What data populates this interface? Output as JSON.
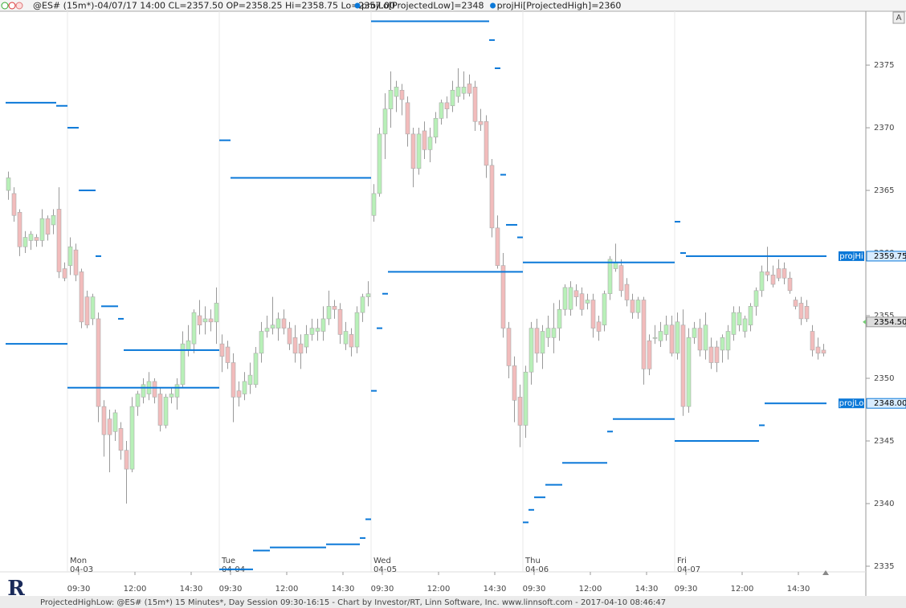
{
  "chart_data": {
    "type": "candlestick",
    "header": "@ES# (15m*)-04/07/17 14:00 CL=2357.50 OP=2358.25 Hi=2358.75 Lo=2357.00",
    "footer": "ProjectedHighLow: @ES# (15m*) 15 Minutes*, Day Session 09:30-16:15 - Chart by Investor/RT, Linn Software, Inc. www.linnsoft.com - 2017-04-10 08:46:47",
    "logo": "R",
    "scale_button": "A",
    "up_color": "#b8f0b8",
    "down_color": "#f2bcbc",
    "ylim": [
      2334.55,
      2379.3
    ],
    "yticks": [
      2335,
      2340,
      2345,
      2350,
      2355,
      2360,
      2365,
      2370,
      2375
    ],
    "day_labels": [
      {
        "value": 11,
        "label": "Mon",
        "date": "04-03"
      },
      {
        "value": 38,
        "label": "Tue",
        "date": "04-04"
      },
      {
        "value": 65,
        "label": "Wed",
        "date": "04-05"
      },
      {
        "value": 92,
        "label": "Thu",
        "date": "04-06"
      },
      {
        "value": 119,
        "label": "Fri",
        "date": "04-07"
      }
    ],
    "xticks": [
      {
        "value": 13,
        "label": "09:30"
      },
      {
        "value": 23,
        "label": "12:00"
      },
      {
        "value": 33,
        "label": "14:30"
      },
      {
        "value": 40,
        "label": "09:30"
      },
      {
        "value": 50,
        "label": "12:00"
      },
      {
        "value": 60,
        "label": "14:30"
      },
      {
        "value": 67,
        "label": "09:30"
      },
      {
        "value": 77,
        "label": "12:00"
      },
      {
        "value": 87,
        "label": "14:30"
      },
      {
        "value": 94,
        "label": "09:30"
      },
      {
        "value": 104,
        "label": "12:00"
      },
      {
        "value": 114,
        "label": "14:30"
      },
      {
        "value": 121,
        "label": "09:30"
      },
      {
        "value": 131,
        "label": "12:00"
      },
      {
        "value": 141,
        "label": "14:30"
      }
    ],
    "price_marker": {
      "value": 2354.5,
      "label": "2354.50"
    },
    "candles": [
      [
        2365,
        2366.5,
        2364.25,
        2366
      ],
      [
        2364.75,
        2365.25,
        2362.5,
        2363
      ],
      [
        2363.25,
        2363.5,
        2359.75,
        2360.5
      ],
      [
        2360.5,
        2361.75,
        2360,
        2361.25
      ],
      [
        2361,
        2361.75,
        2360.25,
        2361.5
      ],
      [
        2361.25,
        2361.5,
        2360.5,
        2361
      ],
      [
        2361,
        2363.5,
        2360.5,
        2362.75
      ],
      [
        2362.75,
        2363,
        2361,
        2361.5
      ],
      [
        2362.25,
        2363.5,
        2361.5,
        2363
      ],
      [
        2363.5,
        2365.25,
        2358,
        2358.5
      ],
      [
        2358.75,
        2359.25,
        2357.75,
        2358
      ],
      [
        2359,
        2361.25,
        2358.25,
        2360.5
      ],
      [
        2360.25,
        2360.75,
        2357.75,
        2358.25
      ],
      [
        2358.5,
        2358.75,
        2354,
        2354.5
      ],
      [
        2356.5,
        2357,
        2354,
        2354.25
      ],
      [
        2354.75,
        2356.75,
        2354.25,
        2356.5
      ],
      [
        2354.75,
        2355.25,
        2346.5,
        2347.75
      ],
      [
        2347.75,
        2348.25,
        2343.75,
        2345.5
      ],
      [
        2346.75,
        2347.5,
        2342.5,
        2345.5
      ],
      [
        2345.75,
        2347.5,
        2345,
        2347.25
      ],
      [
        2346,
        2346.5,
        2343.5,
        2344.25
      ],
      [
        2344.25,
        2345,
        2340,
        2342.75
      ],
      [
        2342.75,
        2348.5,
        2342.5,
        2347.75
      ],
      [
        2347.75,
        2349,
        2347,
        2348.75
      ],
      [
        2348.5,
        2350,
        2348,
        2349.5
      ],
      [
        2348.75,
        2350.5,
        2348.25,
        2349.75
      ],
      [
        2349.75,
        2350,
        2348,
        2348.5
      ],
      [
        2348.75,
        2349.25,
        2345.75,
        2346.25
      ],
      [
        2346.25,
        2348.75,
        2346,
        2348.5
      ],
      [
        2348.5,
        2349.25,
        2348,
        2348.75
      ],
      [
        2348.5,
        2350,
        2347.5,
        2349.5
      ],
      [
        2349.5,
        2353.75,
        2349.25,
        2352.75
      ],
      [
        2352.25,
        2354.25,
        2351.75,
        2353
      ],
      [
        2352.75,
        2355.5,
        2352,
        2355.25
      ],
      [
        2355,
        2356.25,
        2353.5,
        2354.25
      ],
      [
        2354.5,
        2355.75,
        2353.5,
        2354.75
      ],
      [
        2354.75,
        2355.5,
        2353.75,
        2354.5
      ],
      [
        2354.5,
        2357.25,
        2352.75,
        2356
      ],
      [
        2352.75,
        2353.5,
        2350.5,
        2351.75
      ],
      [
        2352.5,
        2353,
        2350.75,
        2351.25
      ],
      [
        2351.25,
        2352,
        2346.5,
        2348.5
      ],
      [
        2349,
        2349.75,
        2347.75,
        2348.5
      ],
      [
        2348.75,
        2350.5,
        2348.25,
        2349.75
      ],
      [
        2349.5,
        2351.25,
        2348.75,
        2350.25
      ],
      [
        2349.5,
        2352.5,
        2349.25,
        2352
      ],
      [
        2352,
        2354.5,
        2351.25,
        2353.75
      ],
      [
        2353.75,
        2355,
        2353.25,
        2354
      ],
      [
        2354,
        2356.5,
        2353.5,
        2354.25
      ],
      [
        2354,
        2355.25,
        2353,
        2354.75
      ],
      [
        2354.75,
        2355.5,
        2353.5,
        2354
      ],
      [
        2354,
        2354.5,
        2352.25,
        2352.75
      ],
      [
        2353.25,
        2354.25,
        2351.25,
        2352
      ],
      [
        2352.75,
        2353.5,
        2350.75,
        2352
      ],
      [
        2352.5,
        2354.25,
        2352,
        2353.5
      ],
      [
        2353.5,
        2354.75,
        2353,
        2354
      ],
      [
        2353.75,
        2354.75,
        2353,
        2354
      ],
      [
        2353.75,
        2355.75,
        2353,
        2354.75
      ],
      [
        2354.75,
        2357,
        2354.25,
        2355.75
      ],
      [
        2355.75,
        2356.25,
        2354.75,
        2355.5
      ],
      [
        2355.5,
        2356,
        2352.75,
        2353.5
      ],
      [
        2352.75,
        2354.5,
        2352.25,
        2353.75
      ],
      [
        2353.5,
        2354,
        2351.75,
        2352.5
      ],
      [
        2352.5,
        2355.75,
        2352,
        2355.25
      ],
      [
        2355.25,
        2356.75,
        2354.5,
        2356.5
      ],
      [
        2356.5,
        2357.75,
        2355.75,
        2356.75
      ],
      [
        2363,
        2365.5,
        2362.5,
        2364.75
      ],
      [
        2364.75,
        2370,
        2364.5,
        2369.5
      ],
      [
        2369.5,
        2372.75,
        2367.5,
        2371.5
      ],
      [
        2371.5,
        2374.5,
        2370,
        2373
      ],
      [
        2372.5,
        2373.75,
        2371.25,
        2373.25
      ],
      [
        2373,
        2373.5,
        2371,
        2372.25
      ],
      [
        2372,
        2372.5,
        2368.5,
        2369.5
      ],
      [
        2369.5,
        2370,
        2365.25,
        2366.75
      ],
      [
        2366.75,
        2370,
        2366.25,
        2369.5
      ],
      [
        2369.75,
        2370.5,
        2367.5,
        2368.25
      ],
      [
        2368.25,
        2370,
        2367.25,
        2369.25
      ],
      [
        2369.25,
        2371.25,
        2368.75,
        2370.75
      ],
      [
        2370.75,
        2372.25,
        2370.25,
        2372
      ],
      [
        2372,
        2372.5,
        2370.75,
        2371.5
      ],
      [
        2371.75,
        2373.75,
        2371.25,
        2373
      ],
      [
        2372.5,
        2374.75,
        2372,
        2373.25
      ],
      [
        2372.75,
        2374.5,
        2372.25,
        2373.25
      ],
      [
        2373.5,
        2374.25,
        2372.5,
        2372.75
      ],
      [
        2373.25,
        2373.75,
        2369.75,
        2370.5
      ],
      [
        2370.5,
        2371.5,
        2369.75,
        2370.25
      ],
      [
        2370.5,
        2371,
        2366,
        2367
      ],
      [
        2367,
        2367.5,
        2361.25,
        2362
      ],
      [
        2362,
        2363,
        2358.75,
        2359
      ],
      [
        2359,
        2360,
        2353.25,
        2354
      ],
      [
        2354,
        2354.5,
        2350,
        2351
      ],
      [
        2351,
        2351.75,
        2346.5,
        2348.25
      ],
      [
        2348.5,
        2349.5,
        2344.5,
        2346.25
      ],
      [
        2346.25,
        2351,
        2345.25,
        2350.5
      ],
      [
        2350.5,
        2354.5,
        2349.5,
        2354
      ],
      [
        2354,
        2354.75,
        2351.25,
        2352
      ],
      [
        2352,
        2354.25,
        2350.75,
        2353.75
      ],
      [
        2353.25,
        2355,
        2352.5,
        2354
      ],
      [
        2353.25,
        2356,
        2352,
        2354
      ],
      [
        2354,
        2356.25,
        2353,
        2355.5
      ],
      [
        2355.5,
        2357.5,
        2355,
        2357.25
      ],
      [
        2355.5,
        2357.75,
        2355,
        2357.25
      ],
      [
        2357,
        2357.5,
        2355.75,
        2356.5
      ],
      [
        2356.75,
        2357.25,
        2355,
        2355.5
      ],
      [
        2356,
        2356.75,
        2355.5,
        2356.25
      ],
      [
        2356.25,
        2356.75,
        2353.25,
        2354
      ],
      [
        2354.5,
        2355,
        2353,
        2353.75
      ],
      [
        2354.25,
        2357,
        2353.75,
        2356.75
      ],
      [
        2356.75,
        2359.75,
        2356.25,
        2359.5
      ],
      [
        2358.75,
        2360.75,
        2358.5,
        2359.25
      ],
      [
        2359,
        2359.5,
        2356.5,
        2357
      ],
      [
        2357.5,
        2358,
        2355.75,
        2356.25
      ],
      [
        2356.25,
        2356.75,
        2354.75,
        2355.25
      ],
      [
        2355.25,
        2356.5,
        2354.75,
        2356.25
      ],
      [
        2356.25,
        2356.5,
        2349.5,
        2350.75
      ],
      [
        2353,
        2353.5,
        2350.25,
        2350.75
      ],
      [
        2353.25,
        2354.25,
        2352.75,
        2353.25
      ],
      [
        2353,
        2354.5,
        2352.5,
        2353.75
      ],
      [
        2353.5,
        2355,
        2353,
        2354.25
      ],
      [
        2354.25,
        2355,
        2351.75,
        2352
      ],
      [
        2352,
        2355.25,
        2351.5,
        2354.5
      ],
      [
        2354.25,
        2355.5,
        2347,
        2347.75
      ],
      [
        2347.75,
        2354,
        2347.25,
        2353.25
      ],
      [
        2353.25,
        2354.5,
        2352.75,
        2354
      ],
      [
        2354,
        2354.75,
        2351.75,
        2352.25
      ],
      [
        2352.25,
        2355.25,
        2351.5,
        2354.25
      ],
      [
        2352.5,
        2353.25,
        2350.75,
        2351.25
      ],
      [
        2352.5,
        2353,
        2350.5,
        2351.25
      ],
      [
        2352.25,
        2353.5,
        2351.25,
        2353.25
      ],
      [
        2352.25,
        2354.25,
        2351.5,
        2353.75
      ],
      [
        2353.5,
        2355.75,
        2353,
        2355.25
      ],
      [
        2354.25,
        2355.75,
        2353.75,
        2355.25
      ],
      [
        2353.75,
        2355,
        2353.25,
        2354.75
      ],
      [
        2354.25,
        2356,
        2353.75,
        2355.75
      ],
      [
        2355.75,
        2357.25,
        2355,
        2357
      ],
      [
        2357,
        2359,
        2356.5,
        2358.5
      ],
      [
        2358.5,
        2360.5,
        2357.75,
        2358.25
      ],
      [
        2358.25,
        2359,
        2357.25,
        2357.5
      ],
      [
        2358.75,
        2359.5,
        2357.75,
        2358
      ],
      [
        2358.75,
        2359.25,
        2357.5,
        2358
      ],
      [
        2358,
        2358.5,
        2356.75,
        2357
      ],
      [
        2356.25,
        2356.5,
        2355.5,
        2355.75
      ],
      [
        2356,
        2356.5,
        2354.25,
        2354.75
      ],
      [
        2355.75,
        2356.25,
        2354.5,
        2354.75
      ],
      [
        2353.75,
        2354.25,
        2351.75,
        2352.25
      ],
      [
        2352.5,
        2353.25,
        2351.5,
        2352
      ],
      [
        2352.25,
        2352.75,
        2351.75,
        2352
      ]
    ],
    "series": [
      {
        "name": "projLo",
        "legend": "projLo[ProjectedLow]=2348",
        "color": "#0a78d8",
        "last_label": "2348.00",
        "values": [
          2352.75,
          2352.75,
          2352.75,
          2352.75,
          2352.75,
          2352.75,
          2352.75,
          2352.75,
          2352.75,
          2352.75,
          2352.75,
          2349.25,
          2349.25,
          2349.25,
          2349.25,
          2349.25,
          2349.25,
          2349.25,
          2349.25,
          2349.25,
          2349.25,
          2349.25,
          2349.25,
          2349.25,
          2349.25,
          2349.25,
          2349.25,
          2349.25,
          2349.25,
          2349.25,
          2349.25,
          2349.25,
          2349.25,
          2349.25,
          2349.25,
          2349.25,
          2349.25,
          2349.25,
          2334.75,
          2334.75,
          2334.75,
          2334.75,
          2334.75,
          2334.75,
          2336.25,
          2336.25,
          2336.25,
          2336.5,
          2336.5,
          2336.5,
          2336.5,
          2336.5,
          2336.5,
          2336.5,
          2336.5,
          2336.5,
          2336.5,
          2336.75,
          2336.75,
          2336.75,
          2336.75,
          2336.75,
          2336.75,
          2337.25,
          2338.75,
          2349,
          2354,
          2356.75,
          2358.5,
          2358.5,
          2358.5,
          2358.5,
          2358.5,
          2358.5,
          2358.5,
          2358.5,
          2358.5,
          2358.5,
          2358.5,
          2358.5,
          2358.5,
          2358.5,
          2358.5,
          2358.5,
          2358.5,
          2358.5,
          2358.5,
          2358.5,
          2358.5,
          2358.5,
          2358.5,
          2358.5,
          2338.5,
          2339.5,
          2340.5,
          2340.5,
          2341.5,
          2341.5,
          2341.5,
          2343.25,
          2343.25,
          2343.25,
          2343.25,
          2343.25,
          2343.25,
          2343.25,
          2343.25,
          2345.75,
          2346.75,
          2346.75,
          2346.75,
          2346.75,
          2346.75,
          2346.75,
          2346.75,
          2346.75,
          2346.75,
          2346.75,
          2346.75,
          2345,
          2345,
          2345,
          2345,
          2345,
          2345,
          2345,
          2345,
          2345,
          2345,
          2345,
          2345,
          2345,
          2345,
          2345,
          2346.25,
          2348,
          2348,
          2348,
          2348,
          2348,
          2348,
          2348,
          2348,
          2348,
          2348,
          2348
        ]
      },
      {
        "name": "projHi",
        "legend": "projHi[ProjectedHigh]=2360",
        "color": "#0a78d8",
        "last_label": "2359.75",
        "values": [
          2372,
          2372,
          2372,
          2372,
          2372,
          2372,
          2372,
          2372,
          2372,
          2371.75,
          2371.75,
          2370,
          2370,
          2365,
          2365,
          2365,
          2359.75,
          2355.75,
          2355.75,
          2355.75,
          2354.75,
          2352.25,
          2352.25,
          2352.25,
          2352.25,
          2352.25,
          2352.25,
          2352.25,
          2352.25,
          2352.25,
          2352.25,
          2352.25,
          2352.25,
          2352.25,
          2352.25,
          2352.25,
          2352.25,
          2352.25,
          2369,
          2369,
          2366,
          2366,
          2366,
          2366,
          2366,
          2366,
          2366,
          2366,
          2366,
          2366,
          2366,
          2366,
          2366,
          2366,
          2366,
          2366,
          2366,
          2366,
          2366,
          2366,
          2366,
          2366,
          2366,
          2366,
          2366,
          2378.5,
          2378.5,
          2378.5,
          2378.5,
          2378.5,
          2378.5,
          2378.5,
          2378.5,
          2378.5,
          2378.5,
          2378.5,
          2378.5,
          2378.5,
          2378.5,
          2378.5,
          2378.5,
          2378.5,
          2378.5,
          2378.5,
          2378.5,
          2378.5,
          2377,
          2374.75,
          2366.25,
          2362.25,
          2362.25,
          2361.25,
          2359.25,
          2359.25,
          2359.25,
          2359.25,
          2359.25,
          2359.25,
          2359.25,
          2359.25,
          2359.25,
          2359.25,
          2359.25,
          2359.25,
          2359.25,
          2359.25,
          2359.25,
          2359.25,
          2359.25,
          2359.25,
          2359.25,
          2359.25,
          2359.25,
          2359.25,
          2359.25,
          2359.25,
          2359.25,
          2359.25,
          2359.25,
          2362.5,
          2360,
          2359.75,
          2359.75,
          2359.75,
          2359.75,
          2359.75,
          2359.75,
          2359.75,
          2359.75,
          2359.75,
          2359.75,
          2359.75,
          2359.75,
          2359.75,
          2359.75,
          2359.75,
          2359.75,
          2359.75,
          2359.75,
          2359.75,
          2359.75,
          2359.75,
          2359.75,
          2359.75,
          2359.75,
          2359.75
        ]
      }
    ]
  }
}
